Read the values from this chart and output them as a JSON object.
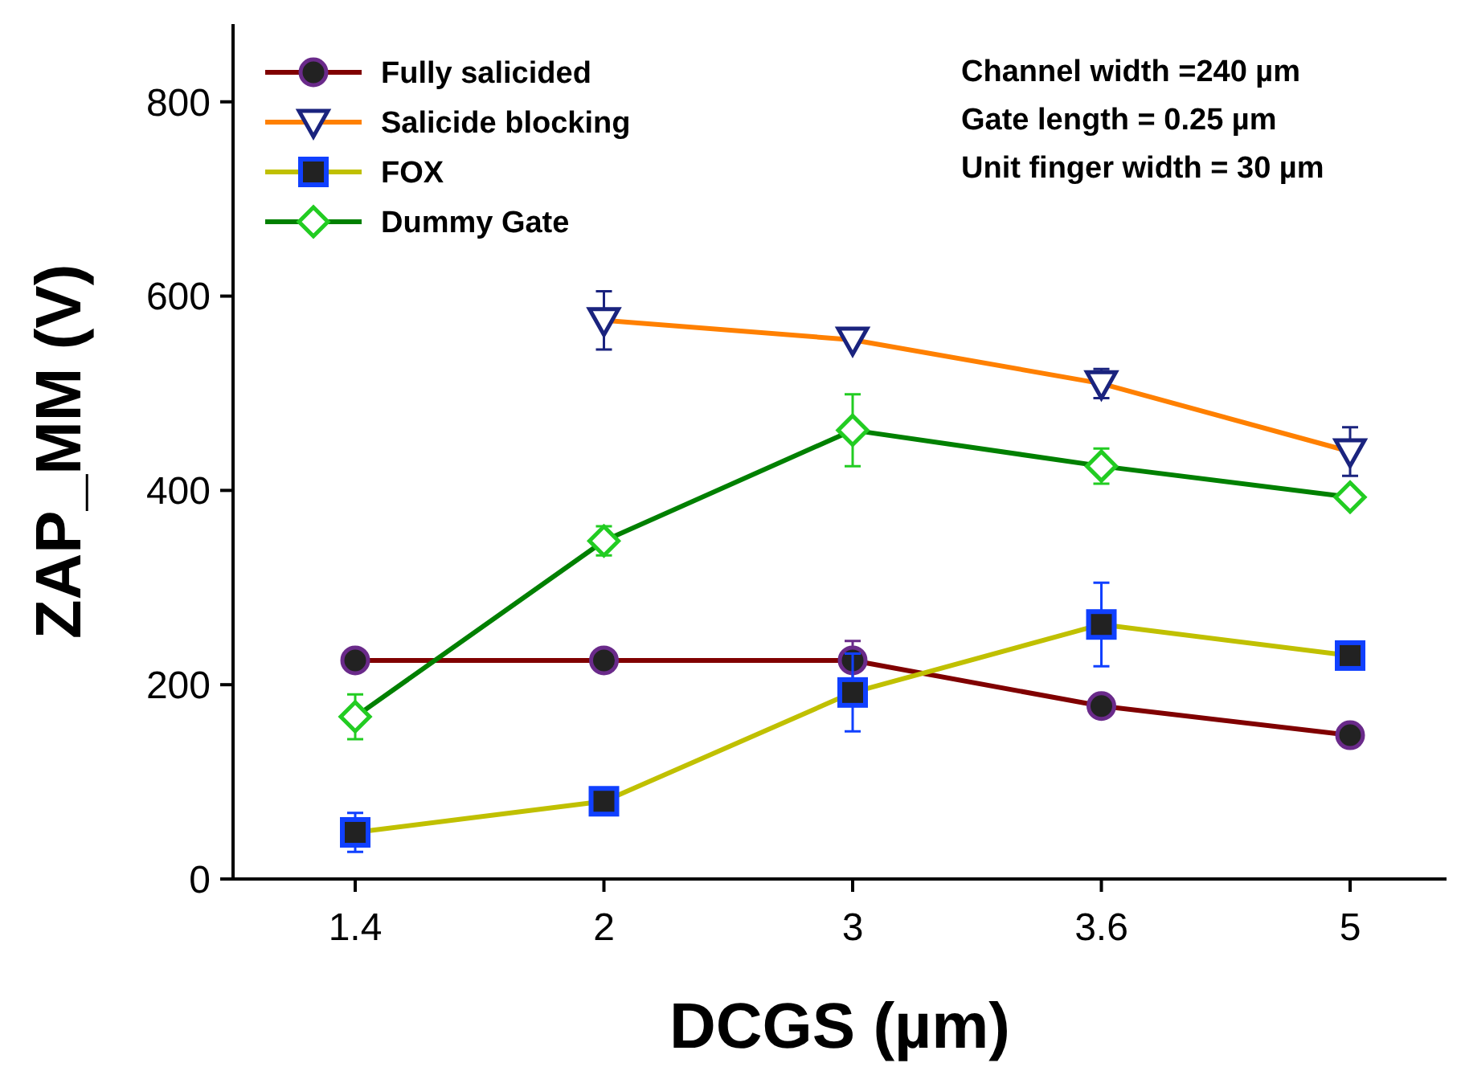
{
  "chart_data": {
    "type": "line",
    "xlabel": "DCGS (µm)",
    "ylabel": "ZAP_MM (V)",
    "categories": [
      "1.4",
      "2",
      "3",
      "3.6",
      "5"
    ],
    "ylim": [
      0,
      880
    ],
    "yticks": [
      0,
      200,
      400,
      600,
      800
    ],
    "grid": false,
    "legend": "top left",
    "series": [
      {
        "name": "Fully salicided",
        "color": "#800000",
        "marker": "circle",
        "values": [
          225,
          225,
          225,
          178,
          148
        ],
        "errors": [
          null,
          null,
          20,
          null,
          null
        ]
      },
      {
        "name": "Salicide blocking",
        "color": "#ff8000",
        "marker": "triangle",
        "values": [
          null,
          575,
          555,
          510,
          440
        ],
        "errors": [
          null,
          30,
          null,
          15,
          25
        ]
      },
      {
        "name": "FOX",
        "color": "#c0c000",
        "marker": "square",
        "values": [
          48,
          80,
          192,
          262,
          230
        ],
        "errors": [
          20,
          null,
          40,
          43,
          null
        ]
      },
      {
        "name": "Dummy Gate",
        "color": "#008000",
        "marker": "diamond",
        "values": [
          167,
          348,
          462,
          425,
          393
        ],
        "errors": [
          23,
          15,
          37,
          18,
          null
        ]
      }
    ],
    "annotations": [
      "Channel width =240 µm",
      "Gate length = 0.25 µm",
      "Unit finger width = 30 µm"
    ]
  }
}
